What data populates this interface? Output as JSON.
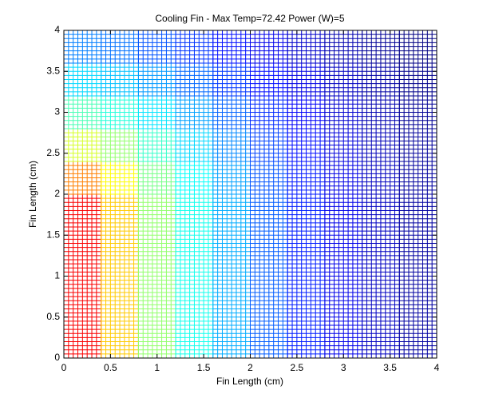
{
  "chart_data": {
    "type": "mesh",
    "title": "Cooling Fin - Max Temp=72.42 Power (W)=5",
    "x_label": "Fin Length (cm)",
    "y_label": "Fin Length (cm)",
    "x_edges": [
      0,
      0.4,
      0.8,
      1.2,
      1.6,
      2.0,
      2.4,
      2.8,
      3.2,
      3.6,
      4.0
    ],
    "y_edges": [
      0,
      0.4,
      0.8,
      1.2,
      1.6,
      2.0,
      2.4,
      2.8,
      3.2,
      3.6,
      4.0
    ],
    "z": [
      [
        66.6,
        56.8,
        49.1,
        43.0,
        38.2,
        34.4,
        31.4,
        29.0,
        27.1,
        25.6
      ],
      [
        66.6,
        56.8,
        49.1,
        43.0,
        38.2,
        34.4,
        31.4,
        29.0,
        27.1,
        25.6
      ],
      [
        66.6,
        56.8,
        49.1,
        43.0,
        38.2,
        34.4,
        31.4,
        29.0,
        27.1,
        25.6
      ],
      [
        66.6,
        56.8,
        49.1,
        43.0,
        38.2,
        34.4,
        31.4,
        29.0,
        27.1,
        25.6
      ],
      [
        66.6,
        56.8,
        49.1,
        43.0,
        38.2,
        34.4,
        31.4,
        29.0,
        27.1,
        25.6
      ],
      [
        60.3,
        54.3,
        47.8,
        42.3,
        37.7,
        34.0,
        31.2,
        28.8,
        27.0,
        25.5
      ],
      [
        52.3,
        49.1,
        44.7,
        40.3,
        36.5,
        33.2,
        30.6,
        28.4,
        26.7,
        25.3
      ],
      [
        45.6,
        43.8,
        40.9,
        37.7,
        34.7,
        32.0,
        29.7,
        27.8,
        26.3,
        25.0
      ],
      [
        40.3,
        39.2,
        37.3,
        35.0,
        32.7,
        30.6,
        28.7,
        27.1,
        25.8,
        24.6
      ],
      [
        36.1,
        35.4,
        34.0,
        32.5,
        30.7,
        29.1,
        27.6,
        26.3,
        25.1,
        24.2
      ]
    ],
    "clim": [
      24,
      72.42
    ],
    "colormap": "jet",
    "xlim": [
      0,
      4
    ],
    "ylim": [
      0,
      4
    ],
    "xticks": [
      0,
      0.5,
      1,
      1.5,
      2,
      2.5,
      3,
      3.5,
      4
    ],
    "yticks": [
      0,
      0.5,
      1,
      1.5,
      2,
      2.5,
      3,
      3.5,
      4
    ]
  }
}
